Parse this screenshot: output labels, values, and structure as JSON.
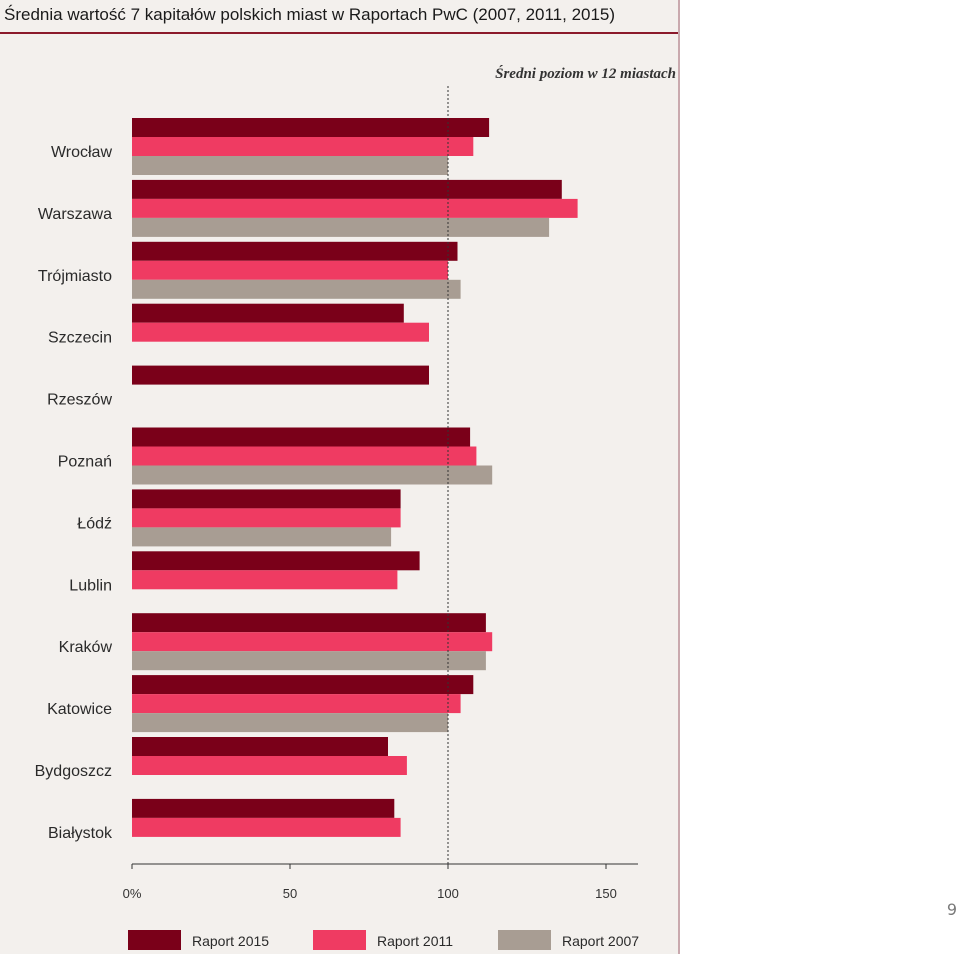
{
  "title": "Średnia wartość 7 kapitałów polskich miast w Raportach PwC (2007, 2011, 2015)",
  "page_number": "9",
  "colors": {
    "raport_2015": "#7a0019",
    "raport_2011": "#ef3b62",
    "raport_2007": "#a89d93",
    "background": "#f3f0ed",
    "accent_rule": "#8b1a2b"
  },
  "chart_data": {
    "type": "bar",
    "orientation": "horizontal",
    "title": "Średnia wartość 7 kapitałów polskich miast w Raportach PwC (2007, 2011, 2015)",
    "categories": [
      "Wrocław",
      "Warszawa",
      "Trójmiasto",
      "Szczecin",
      "Rzeszów",
      "Poznań",
      "Łódź",
      "Lublin",
      "Kraków",
      "Katowice",
      "Bydgoszcz",
      "Białystok"
    ],
    "series": [
      {
        "name": "Raport 2015",
        "values": [
          113,
          136,
          103,
          86,
          94,
          107,
          85,
          91,
          112,
          108,
          81,
          83
        ]
      },
      {
        "name": "Raport 2011",
        "values": [
          108,
          141,
          100,
          94,
          null,
          109,
          85,
          84,
          114,
          104,
          87,
          85
        ]
      },
      {
        "name": "Raport 2007",
        "values": [
          100,
          132,
          104,
          null,
          null,
          114,
          82,
          null,
          112,
          100,
          null,
          null
        ]
      }
    ],
    "xlim": [
      0,
      160
    ],
    "x_ticks": [
      "0%",
      "50",
      "100",
      "150"
    ],
    "x_tick_values": [
      0,
      50,
      100,
      150
    ],
    "reference_line": {
      "value": 100,
      "label": "Średni poziom w 12 miastach"
    },
    "legend_position": "bottom",
    "grid": false
  }
}
